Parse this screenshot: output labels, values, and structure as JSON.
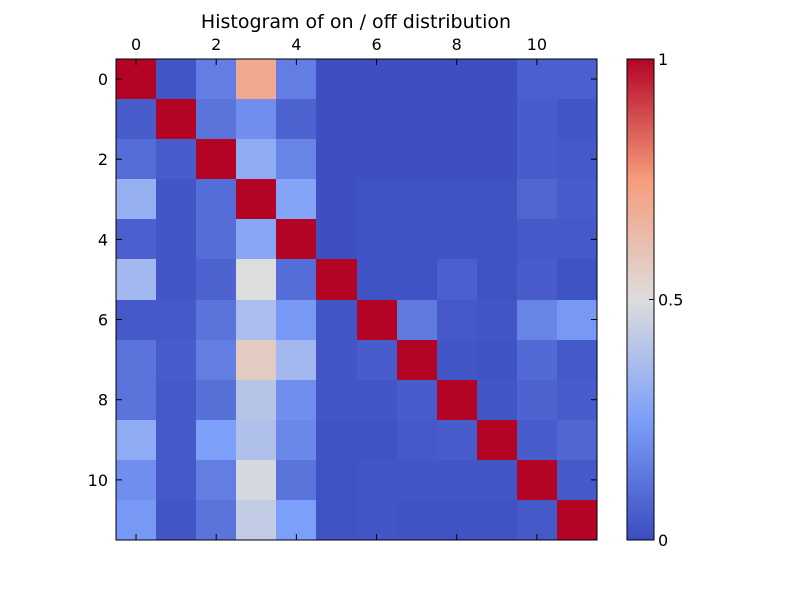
{
  "chart_data": {
    "type": "heatmap",
    "title": "Histogram of on / off distribution",
    "rows": 12,
    "cols": 12,
    "x_ticks": [
      0,
      2,
      4,
      6,
      8,
      10
    ],
    "y_ticks": [
      0,
      2,
      4,
      6,
      8,
      10
    ],
    "x_tick_labels": [
      "0",
      "2",
      "4",
      "6",
      "8",
      "10"
    ],
    "y_tick_labels": [
      "0",
      "2",
      "4",
      "6",
      "8",
      "10"
    ],
    "colorbar": {
      "range": [
        0,
        1
      ],
      "tick_values": [
        0,
        0.5,
        1
      ],
      "tick_labels": [
        "0",
        "0.5",
        "1"
      ],
      "colormap": "coolwarm"
    },
    "values": [
      [
        1.0,
        0.03,
        0.15,
        0.7,
        0.15,
        0.01,
        0.01,
        0.01,
        0.01,
        0.01,
        0.06,
        0.06
      ],
      [
        0.05,
        1.0,
        0.12,
        0.2,
        0.07,
        0.01,
        0.01,
        0.01,
        0.01,
        0.01,
        0.05,
        0.03
      ],
      [
        0.1,
        0.05,
        1.0,
        0.3,
        0.17,
        0.01,
        0.01,
        0.01,
        0.01,
        0.01,
        0.05,
        0.04
      ],
      [
        0.32,
        0.03,
        0.1,
        1.0,
        0.27,
        0.01,
        0.02,
        0.02,
        0.02,
        0.02,
        0.08,
        0.05
      ],
      [
        0.06,
        0.03,
        0.1,
        0.28,
        1.0,
        0.01,
        0.02,
        0.02,
        0.02,
        0.02,
        0.04,
        0.04
      ],
      [
        0.35,
        0.03,
        0.07,
        0.5,
        0.1,
        1.0,
        0.02,
        0.02,
        0.06,
        0.02,
        0.05,
        0.02
      ],
      [
        0.04,
        0.04,
        0.12,
        0.37,
        0.23,
        0.03,
        1.0,
        0.14,
        0.04,
        0.03,
        0.17,
        0.23
      ],
      [
        0.12,
        0.05,
        0.15,
        0.57,
        0.35,
        0.03,
        0.05,
        1.0,
        0.03,
        0.02,
        0.09,
        0.04
      ],
      [
        0.12,
        0.04,
        0.11,
        0.4,
        0.2,
        0.03,
        0.03,
        0.05,
        1.0,
        0.03,
        0.07,
        0.05
      ],
      [
        0.3,
        0.04,
        0.25,
        0.38,
        0.18,
        0.02,
        0.02,
        0.04,
        0.05,
        1.0,
        0.05,
        0.08
      ],
      [
        0.2,
        0.04,
        0.15,
        0.48,
        0.12,
        0.02,
        0.03,
        0.03,
        0.03,
        0.03,
        1.0,
        0.04
      ],
      [
        0.23,
        0.03,
        0.12,
        0.43,
        0.25,
        0.02,
        0.03,
        0.02,
        0.02,
        0.02,
        0.04,
        1.0
      ]
    ]
  }
}
